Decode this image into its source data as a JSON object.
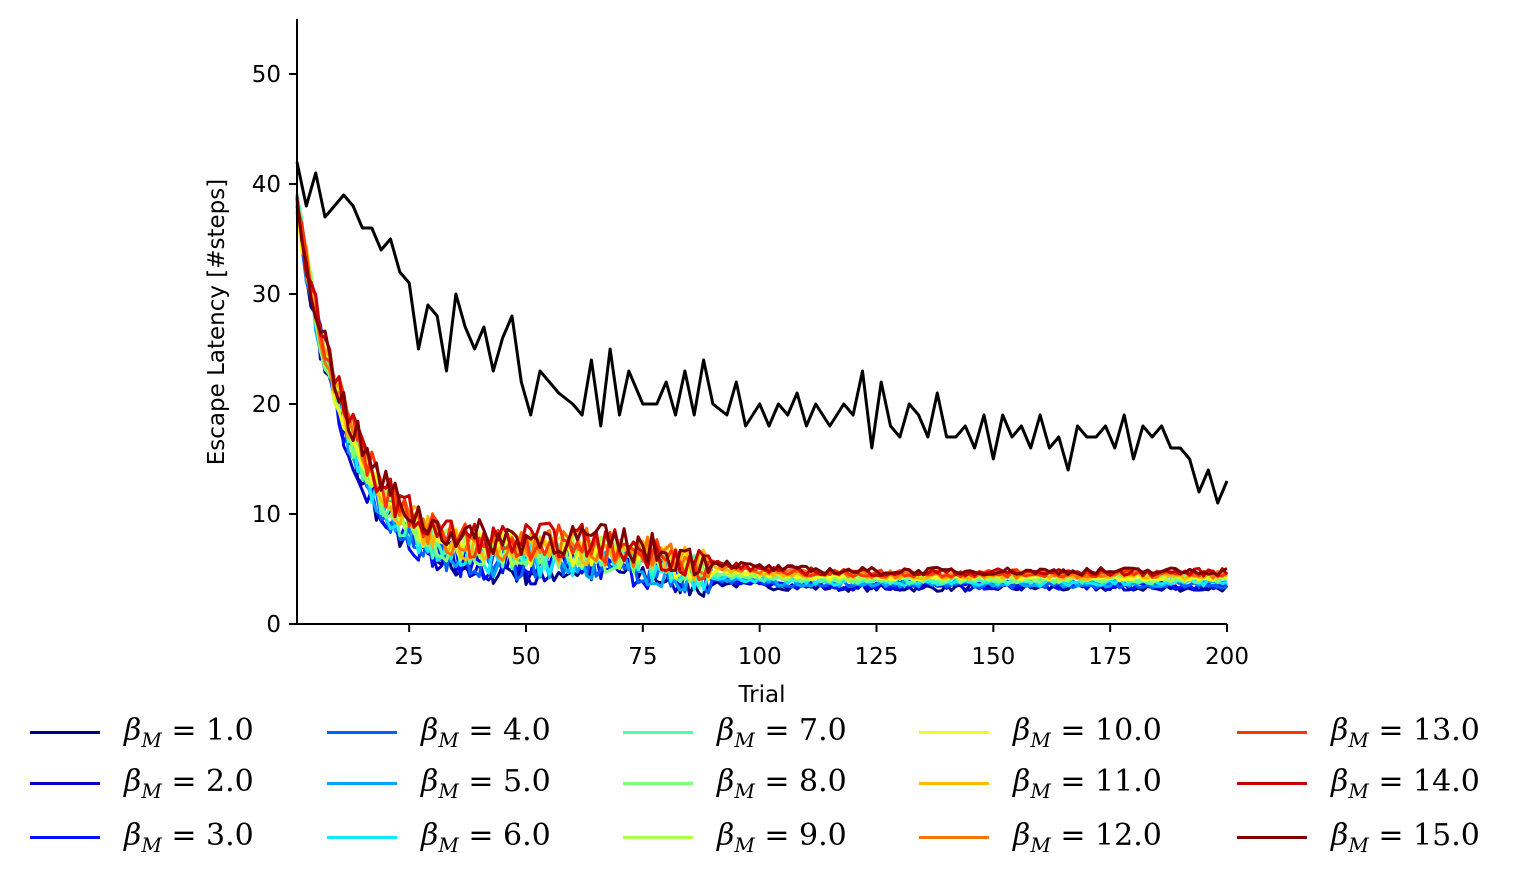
{
  "chart_data": {
    "type": "line",
    "title": "",
    "xlabel": "Trial",
    "ylabel": "Escape Latency [#steps]",
    "xlim": [
      1,
      200
    ],
    "ylim": [
      0,
      55
    ],
    "xticks": [
      25,
      50,
      75,
      100,
      125,
      150,
      175,
      200
    ],
    "yticks": [
      0,
      10,
      20,
      30,
      40,
      50
    ],
    "grid": false,
    "legend_placement": "bottom",
    "baseline": {
      "color": "#000000",
      "points": [
        [
          1,
          42
        ],
        [
          3,
          38
        ],
        [
          5,
          41
        ],
        [
          7,
          37
        ],
        [
          9,
          38
        ],
        [
          11,
          39
        ],
        [
          13,
          38
        ],
        [
          15,
          36
        ],
        [
          17,
          36
        ],
        [
          19,
          34
        ],
        [
          21,
          35
        ],
        [
          23,
          32
        ],
        [
          25,
          31
        ],
        [
          27,
          25
        ],
        [
          29,
          29
        ],
        [
          31,
          28
        ],
        [
          33,
          23
        ],
        [
          35,
          30
        ],
        [
          37,
          27
        ],
        [
          39,
          25
        ],
        [
          41,
          27
        ],
        [
          43,
          23
        ],
        [
          45,
          26
        ],
        [
          47,
          28
        ],
        [
          49,
          22
        ],
        [
          51,
          19
        ],
        [
          53,
          23
        ],
        [
          55,
          22
        ],
        [
          57,
          21
        ],
        [
          60,
          20
        ],
        [
          62,
          19
        ],
        [
          64,
          24
        ],
        [
          66,
          18
        ],
        [
          68,
          25
        ],
        [
          70,
          19
        ],
        [
          72,
          23
        ],
        [
          75,
          20
        ],
        [
          78,
          20
        ],
        [
          80,
          22
        ],
        [
          82,
          19
        ],
        [
          84,
          23
        ],
        [
          86,
          19
        ],
        [
          88,
          24
        ],
        [
          90,
          20
        ],
        [
          93,
          19
        ],
        [
          95,
          22
        ],
        [
          97,
          18
        ],
        [
          100,
          20
        ],
        [
          102,
          18
        ],
        [
          104,
          20
        ],
        [
          106,
          19
        ],
        [
          108,
          21
        ],
        [
          110,
          18
        ],
        [
          112,
          20
        ],
        [
          115,
          18
        ],
        [
          118,
          20
        ],
        [
          120,
          19
        ],
        [
          122,
          23
        ],
        [
          124,
          16
        ],
        [
          126,
          22
        ],
        [
          128,
          18
        ],
        [
          130,
          17
        ],
        [
          132,
          20
        ],
        [
          134,
          19
        ],
        [
          136,
          17
        ],
        [
          138,
          21
        ],
        [
          140,
          17
        ],
        [
          142,
          17
        ],
        [
          144,
          18
        ],
        [
          146,
          16
        ],
        [
          148,
          19
        ],
        [
          150,
          15
        ],
        [
          152,
          19
        ],
        [
          154,
          17
        ],
        [
          156,
          18
        ],
        [
          158,
          16
        ],
        [
          160,
          19
        ],
        [
          162,
          16
        ],
        [
          164,
          17
        ],
        [
          166,
          14
        ],
        [
          168,
          18
        ],
        [
          170,
          17
        ],
        [
          172,
          17
        ],
        [
          174,
          18
        ],
        [
          176,
          16
        ],
        [
          178,
          19
        ],
        [
          180,
          15
        ],
        [
          182,
          18
        ],
        [
          184,
          17
        ],
        [
          186,
          18
        ],
        [
          188,
          16
        ],
        [
          190,
          16
        ],
        [
          192,
          15
        ],
        [
          194,
          12
        ],
        [
          196,
          14
        ],
        [
          198,
          11
        ],
        [
          200,
          13
        ]
      ]
    },
    "series": [
      {
        "name": "β_M = 1.0",
        "color": "#00007f",
        "final": 3.3,
        "speed": 1.0
      },
      {
        "name": "β_M = 2.0",
        "color": "#0000c8",
        "final": 3.4,
        "speed": 1.02
      },
      {
        "name": "β_M = 3.0",
        "color": "#0010ff",
        "final": 3.5,
        "speed": 1.03
      },
      {
        "name": "β_M = 4.0",
        "color": "#0060ff",
        "final": 3.6,
        "speed": 1.04
      },
      {
        "name": "β_M = 5.0",
        "color": "#00a4ff",
        "final": 3.7,
        "speed": 1.05
      },
      {
        "name": "β_M = 6.0",
        "color": "#10e8ff",
        "final": 3.8,
        "speed": 1.06
      },
      {
        "name": "β_M = 7.0",
        "color": "#4affad",
        "final": 4.0,
        "speed": 1.07
      },
      {
        "name": "β_M = 8.0",
        "color": "#7dff7a",
        "final": 4.1,
        "speed": 1.08
      },
      {
        "name": "β_M = 9.0",
        "color": "#adff4a",
        "final": 4.2,
        "speed": 1.09
      },
      {
        "name": "β_M = 10.0",
        "color": "#f1fc1b",
        "final": 4.3,
        "speed": 1.1
      },
      {
        "name": "β_M = 11.0",
        "color": "#ffb800",
        "final": 4.4,
        "speed": 1.11
      },
      {
        "name": "β_M = 12.0",
        "color": "#ff7500",
        "final": 4.5,
        "speed": 1.12
      },
      {
        "name": "β_M = 13.0",
        "color": "#ff3600",
        "final": 4.6,
        "speed": 1.13
      },
      {
        "name": "β_M = 14.0",
        "color": "#c80000",
        "final": 4.7,
        "speed": 1.14
      },
      {
        "name": "β_M = 15.0",
        "color": "#7f0000",
        "final": 4.8,
        "speed": 1.15
      }
    ]
  },
  "legend": {
    "symbol": "β",
    "subscript": "M",
    "values": [
      "1.0",
      "2.0",
      "3.0",
      "4.0",
      "5.0",
      "6.0",
      "7.0",
      "8.0",
      "9.0",
      "10.0",
      "11.0",
      "12.0",
      "13.0",
      "14.0",
      "15.0"
    ]
  }
}
